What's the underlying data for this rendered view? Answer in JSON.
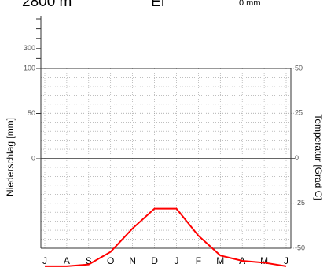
{
  "chart_data": {
    "type": "line",
    "top_labels": [
      "2800 m",
      "Ef",
      "0 mm"
    ],
    "ylabel": "Niederschlag [mm]",
    "y2label": "Temperatur [Grad C]",
    "x": [
      "J",
      "A",
      "S",
      "O",
      "N",
      "D",
      "J",
      "F",
      "M",
      "A",
      "M",
      "J"
    ],
    "series": [
      {
        "name": "Temperatur",
        "color": "#ff0000",
        "axis": "y2",
        "values": [
          -60,
          -60,
          -59,
          -52,
          -39,
          -28,
          -28,
          -43,
          -54,
          -57,
          -58,
          -60
        ]
      }
    ],
    "ylim": [
      -100,
      600
    ],
    "ybreak": 100,
    "yticks": [
      0,
      50,
      100,
      300
    ],
    "yminorticks": [
      200,
      400,
      500,
      600
    ],
    "y2lim": [
      -50,
      50
    ],
    "y2ticks": [
      50,
      25,
      0,
      -25,
      -50
    ],
    "y2minorticks": [
      -45,
      -40,
      -35,
      -30,
      -20,
      -15,
      -10,
      -5,
      5,
      10,
      15,
      20,
      30,
      35,
      40,
      45
    ],
    "grid": true
  }
}
